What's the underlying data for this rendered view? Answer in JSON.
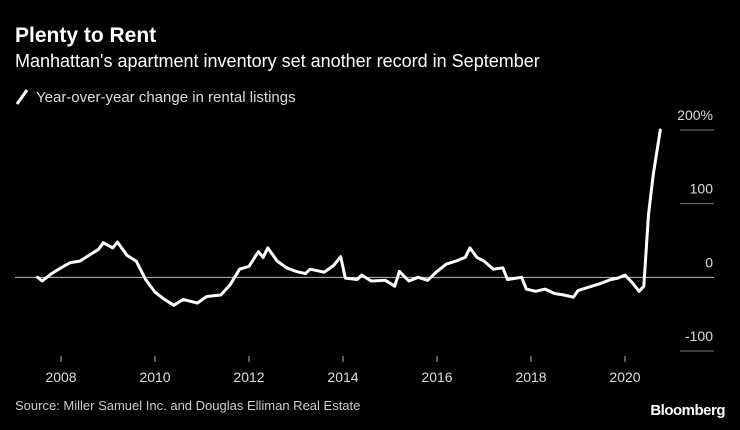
{
  "chart_data": {
    "type": "line",
    "title": "Plenty to Rent",
    "subtitle": "Manhattan's apartment inventory set another record in September",
    "source": "Source: Miller Samuel Inc. and Douglas Elliman Real Estate",
    "brand": "Bloomberg",
    "xlim": [
      2007,
      2022
    ],
    "xticks": [
      2008,
      2010,
      2012,
      2014,
      2016,
      2018,
      2020
    ],
    "ylim": [
      -100,
      200
    ],
    "yticks": [
      -100,
      0,
      100,
      {
        "value": 200,
        "label": "200%"
      }
    ],
    "grid": true,
    "series": [
      {
        "name": "Year-over-year change in rental listings",
        "color": "#ffffff",
        "x": [
          2007.5,
          2007.6,
          2007.8,
          2008.0,
          2008.2,
          2008.4,
          2008.6,
          2008.8,
          2008.9,
          2009.1,
          2009.2,
          2009.4,
          2009.6,
          2009.8,
          2010.0,
          2010.2,
          2010.4,
          2010.6,
          2010.9,
          2011.1,
          2011.4,
          2011.6,
          2011.8,
          2012.0,
          2012.2,
          2012.3,
          2012.4,
          2012.6,
          2012.8,
          2013.0,
          2013.2,
          2013.3,
          2013.6,
          2013.8,
          2013.95,
          2014.05,
          2014.3,
          2014.4,
          2014.6,
          2014.9,
          2015.1,
          2015.2,
          2015.4,
          2015.6,
          2015.8,
          2016.0,
          2016.2,
          2016.4,
          2016.6,
          2016.7,
          2016.85,
          2017.0,
          2017.2,
          2017.4,
          2017.5,
          2017.8,
          2017.9,
          2018.1,
          2018.3,
          2018.5,
          2018.7,
          2018.9,
          2019.0,
          2019.2,
          2019.5,
          2019.7,
          2019.85,
          2020.0,
          2020.15,
          2020.3,
          2020.4,
          2020.5,
          2020.6,
          2020.75
        ],
        "values": [
          0,
          -5,
          5,
          13,
          20,
          22,
          30,
          38,
          47,
          40,
          48,
          30,
          22,
          -3,
          -20,
          -30,
          -38,
          -30,
          -35,
          -26,
          -24,
          -10,
          11,
          15,
          35,
          27,
          40,
          22,
          13,
          8,
          5,
          11,
          7,
          16,
          28,
          -1,
          -3,
          3,
          -5,
          -4,
          -12,
          8,
          -5,
          0,
          -4,
          8,
          18,
          22,
          27,
          40,
          27,
          22,
          11,
          13,
          -3,
          0,
          -16,
          -19,
          -16,
          -22,
          -24,
          -27,
          -18,
          -14,
          -8,
          -3,
          -1,
          3,
          -7,
          -19,
          -12,
          85,
          139,
          200
        ]
      }
    ]
  }
}
